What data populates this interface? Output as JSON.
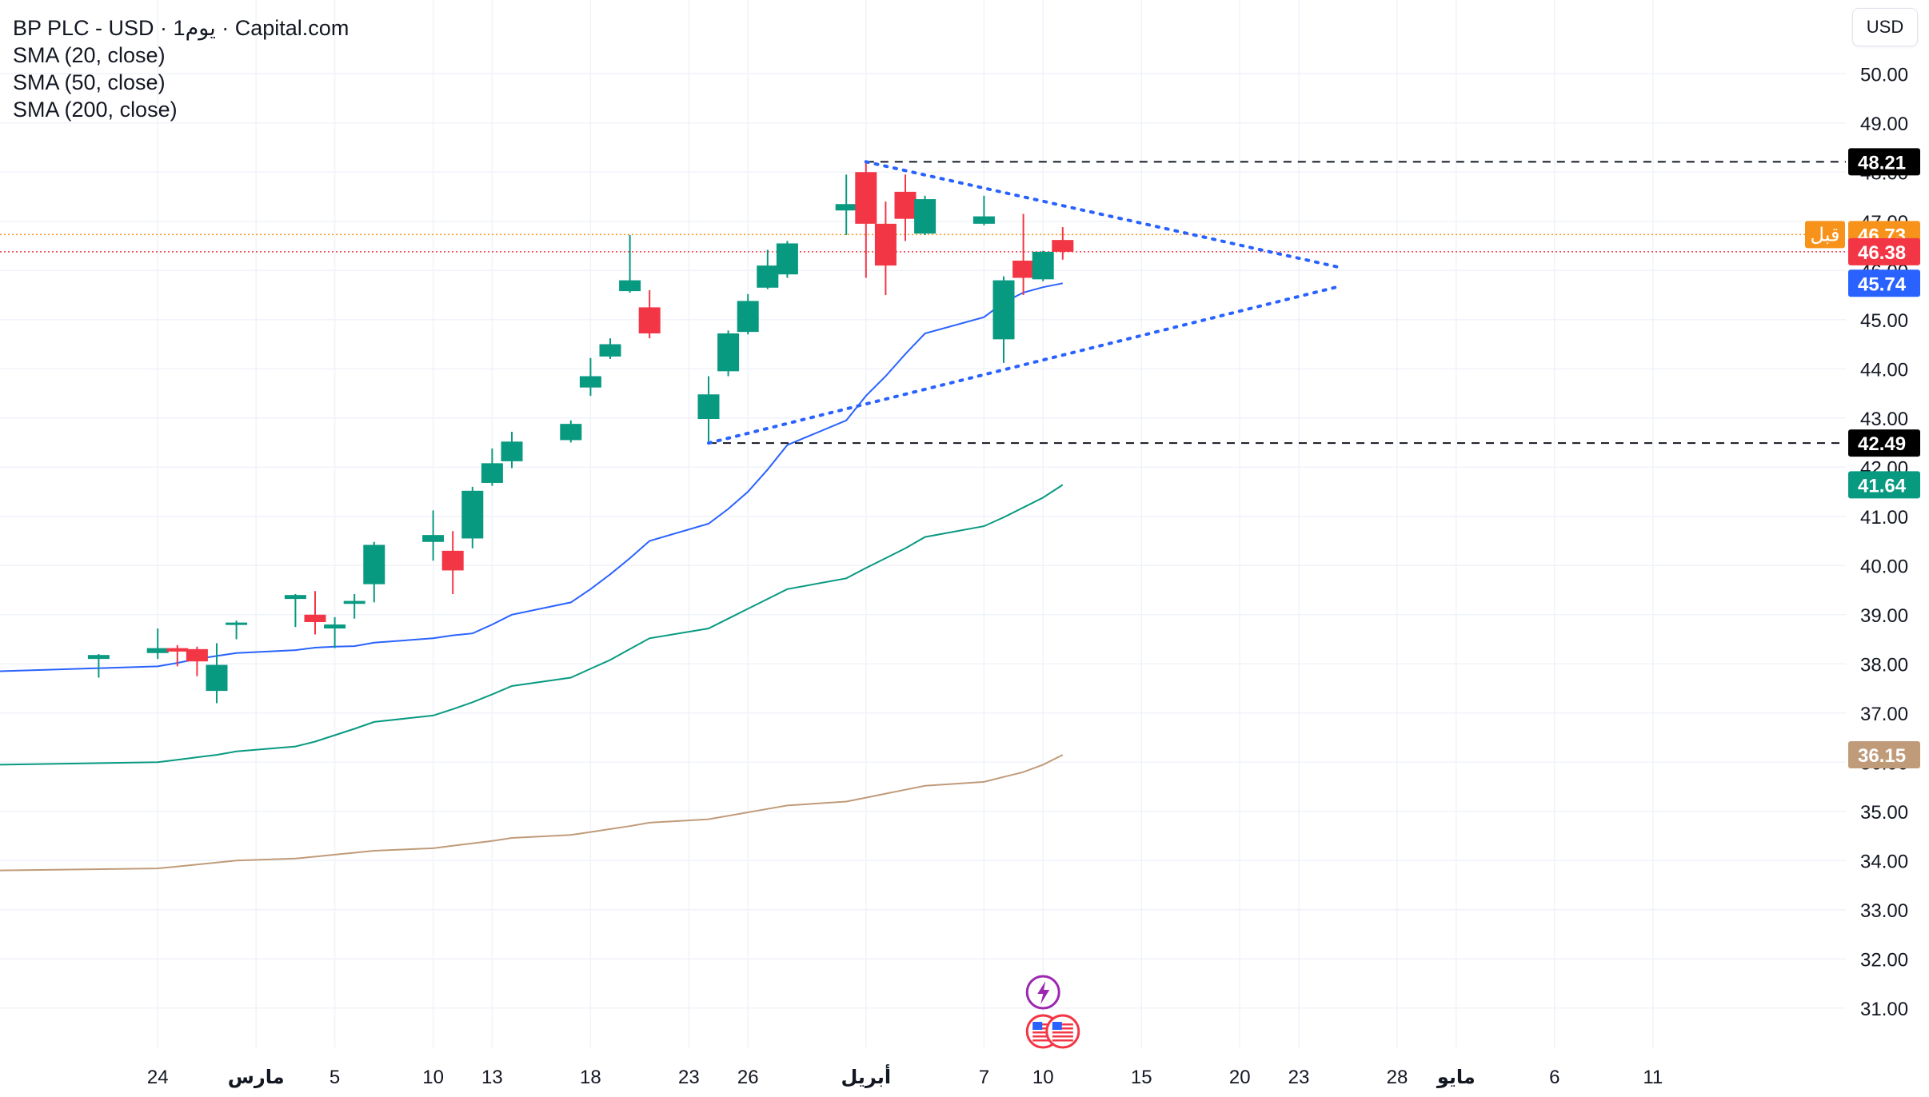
{
  "header": {
    "title": "BP PLC - USD · 1يوم · Capital.com",
    "indicators": [
      "SMA (20, close)",
      "SMA (50, close)",
      "SMA (200, close)"
    ]
  },
  "currency_button": "USD",
  "colors": {
    "up": "#089981",
    "down": "#f23645",
    "sma20": "#2962ff",
    "sma50": "#089981",
    "sma200": "#c09b79",
    "trendline": "#2962ff",
    "prev_close": "#f7931a",
    "grid": "#f0f3fa"
  },
  "chart_data": {
    "type": "candlestick",
    "x_axis_labels": [
      "24",
      "مارس",
      "5",
      "10",
      "13",
      "18",
      "23",
      "26",
      "أبريل",
      "7",
      "10",
      "15",
      "20",
      "23",
      "28",
      "مايو",
      "6",
      "11"
    ],
    "y_axis_labels": [
      "50.00",
      "49.00",
      "48.00",
      "47.00",
      "46.00",
      "45.00",
      "44.00",
      "43.00",
      "42.00",
      "41.00",
      "40.00",
      "39.00",
      "38.00",
      "37.00",
      "36.00",
      "35.00",
      "34.00",
      "33.00",
      "32.00",
      "31.00"
    ],
    "ylim": [
      30.2,
      51.5
    ],
    "candles": [
      {
        "date": "2025-02-21",
        "o": 38.1,
        "h": 38.2,
        "l": 37.72,
        "c": 38.18
      },
      {
        "date": "2025-02-24",
        "o": 38.22,
        "h": 38.72,
        "l": 38.1,
        "c": 38.32
      },
      {
        "date": "2025-02-25",
        "o": 38.32,
        "h": 38.38,
        "l": 37.95,
        "c": 38.25
      },
      {
        "date": "2025-02-26",
        "o": 38.3,
        "h": 38.35,
        "l": 37.75,
        "c": 38.05
      },
      {
        "date": "2025-02-27",
        "o": 37.45,
        "h": 38.42,
        "l": 37.2,
        "c": 37.98
      },
      {
        "date": "2025-02-28",
        "o": 38.81,
        "h": 38.88,
        "l": 38.5,
        "c": 38.84
      },
      {
        "date": "2025-03-03",
        "o": 39.32,
        "h": 39.42,
        "l": 38.75,
        "c": 39.4
      },
      {
        "date": "2025-03-04",
        "o": 39.0,
        "h": 39.48,
        "l": 38.6,
        "c": 38.85
      },
      {
        "date": "2025-03-05",
        "o": 38.72,
        "h": 38.95,
        "l": 38.32,
        "c": 38.8
      },
      {
        "date": "2025-03-06",
        "o": 39.22,
        "h": 39.42,
        "l": 38.92,
        "c": 39.28
      },
      {
        "date": "2025-03-07",
        "o": 39.62,
        "h": 40.48,
        "l": 39.25,
        "c": 40.42
      },
      {
        "date": "2025-03-10",
        "o": 40.48,
        "h": 41.12,
        "l": 40.1,
        "c": 40.62
      },
      {
        "date": "2025-03-11",
        "o": 40.3,
        "h": 40.7,
        "l": 39.42,
        "c": 39.9
      },
      {
        "date": "2025-03-12",
        "o": 40.55,
        "h": 41.6,
        "l": 40.35,
        "c": 41.52
      },
      {
        "date": "2025-03-13",
        "o": 41.68,
        "h": 42.38,
        "l": 41.62,
        "c": 42.08
      },
      {
        "date": "2025-03-14",
        "o": 42.12,
        "h": 42.72,
        "l": 41.98,
        "c": 42.52
      },
      {
        "date": "2025-03-17",
        "o": 42.55,
        "h": 42.95,
        "l": 42.5,
        "c": 42.88
      },
      {
        "date": "2025-03-18",
        "o": 43.62,
        "h": 44.22,
        "l": 43.45,
        "c": 43.85
      },
      {
        "date": "2025-03-19",
        "o": 44.25,
        "h": 44.62,
        "l": 44.2,
        "c": 44.5
      },
      {
        "date": "2025-03-20",
        "o": 45.58,
        "h": 46.72,
        "l": 45.55,
        "c": 45.8
      },
      {
        "date": "2025-03-21",
        "o": 45.25,
        "h": 45.6,
        "l": 44.62,
        "c": 44.72
      },
      {
        "date": "2025-03-24",
        "o": 42.98,
        "h": 43.85,
        "l": 42.49,
        "c": 43.48
      },
      {
        "date": "2025-03-25",
        "o": 43.95,
        "h": 44.78,
        "l": 43.85,
        "c": 44.72
      },
      {
        "date": "2025-03-26",
        "o": 44.75,
        "h": 45.52,
        "l": 44.7,
        "c": 45.38
      },
      {
        "date": "2025-03-27",
        "o": 45.65,
        "h": 46.42,
        "l": 45.62,
        "c": 46.1
      },
      {
        "date": "2025-03-28",
        "o": 45.92,
        "h": 46.6,
        "l": 45.85,
        "c": 46.55
      },
      {
        "date": "2025-03-31",
        "o": 47.22,
        "h": 47.95,
        "l": 46.72,
        "c": 47.35
      },
      {
        "date": "2025-04-01",
        "o": 48.0,
        "h": 48.21,
        "l": 45.85,
        "c": 46.95
      },
      {
        "date": "2025-04-02",
        "o": 46.95,
        "h": 47.4,
        "l": 45.5,
        "c": 46.1
      },
      {
        "date": "2025-04-03",
        "o": 47.6,
        "h": 47.95,
        "l": 46.6,
        "c": 47.05
      },
      {
        "date": "2025-04-04",
        "o": 46.75,
        "h": 47.52,
        "l": 46.72,
        "c": 47.45
      },
      {
        "date": "2025-04-07",
        "o": 46.95,
        "h": 47.52,
        "l": 46.92,
        "c": 47.1
      },
      {
        "date": "2025-04-08",
        "o": 44.6,
        "h": 45.88,
        "l": 44.12,
        "c": 45.8
      },
      {
        "date": "2025-04-09",
        "o": 46.2,
        "h": 47.15,
        "l": 45.5,
        "c": 45.85
      },
      {
        "date": "2025-04-10",
        "o": 45.82,
        "h": 46.4,
        "l": 45.78,
        "c": 46.38
      },
      {
        "date": "2025-04-11",
        "o": 46.62,
        "h": 46.88,
        "l": 46.22,
        "c": 46.38
      }
    ],
    "sma20": [
      37.85,
      37.95,
      38.02,
      38.1,
      38.16,
      38.22,
      38.28,
      38.33,
      38.35,
      38.36,
      38.43,
      38.52,
      38.58,
      38.62,
      38.8,
      39.0,
      39.25,
      39.52,
      39.82,
      40.15,
      40.5,
      40.85,
      41.15,
      41.5,
      41.95,
      42.45,
      42.95,
      43.45,
      43.85,
      44.3,
      44.72,
      45.05,
      45.35,
      45.55,
      45.66,
      45.74
    ],
    "sma50": [
      35.95,
      36.0,
      36.05,
      36.1,
      36.15,
      36.22,
      36.32,
      36.42,
      36.55,
      36.68,
      36.82,
      36.95,
      37.08,
      37.22,
      37.38,
      37.55,
      37.72,
      37.9,
      38.08,
      38.3,
      38.52,
      38.72,
      38.92,
      39.12,
      39.32,
      39.52,
      39.74,
      39.95,
      40.15,
      40.35,
      40.58,
      40.8,
      40.98,
      41.18,
      41.38,
      41.64
    ],
    "sma200": [
      33.8,
      33.84,
      33.88,
      33.92,
      33.96,
      34.0,
      34.04,
      34.08,
      34.12,
      34.16,
      34.2,
      34.25,
      34.3,
      34.35,
      34.4,
      34.46,
      34.52,
      34.58,
      34.64,
      34.7,
      34.77,
      34.84,
      34.91,
      34.98,
      35.05,
      35.12,
      35.2,
      35.28,
      35.36,
      35.44,
      35.52,
      35.6,
      35.7,
      35.8,
      35.95,
      36.15
    ],
    "horizontal_lines": [
      {
        "price": 48.21,
        "style": "dashed",
        "label": "48.21"
      },
      {
        "price": 42.49,
        "style": "dashed",
        "label": "42.49"
      }
    ],
    "trendlines": [
      {
        "from": {
          "date": "2025-04-01",
          "price": 48.21
        },
        "to": {
          "date": "2025-04-25",
          "price": 46.07
        },
        "style": "dotted"
      },
      {
        "from": {
          "date": "2025-03-24",
          "price": 42.49
        },
        "to": {
          "date": "2025-04-25",
          "price": 45.67
        },
        "style": "dotted"
      }
    ],
    "price_tags": [
      {
        "value": "46.73",
        "prefix": "قبل",
        "kind": "prev_close"
      },
      {
        "value": "46.38",
        "kind": "last"
      },
      {
        "value": "45.74",
        "kind": "sma20"
      },
      {
        "value": "41.64",
        "kind": "sma50"
      },
      {
        "value": "36.15",
        "kind": "sma200"
      },
      {
        "value": "48.21",
        "kind": "line"
      },
      {
        "value": "42.49",
        "kind": "line"
      }
    ],
    "prev_close": 46.73,
    "last_price": 46.38,
    "event_icons": [
      {
        "icon": "lightning-icon",
        "date": "2025-04-10"
      },
      {
        "icon": "us-flag-icon",
        "date": "2025-04-10"
      },
      {
        "icon": "us-flag-icon",
        "date": "2025-04-11"
      }
    ],
    "grid": true
  }
}
